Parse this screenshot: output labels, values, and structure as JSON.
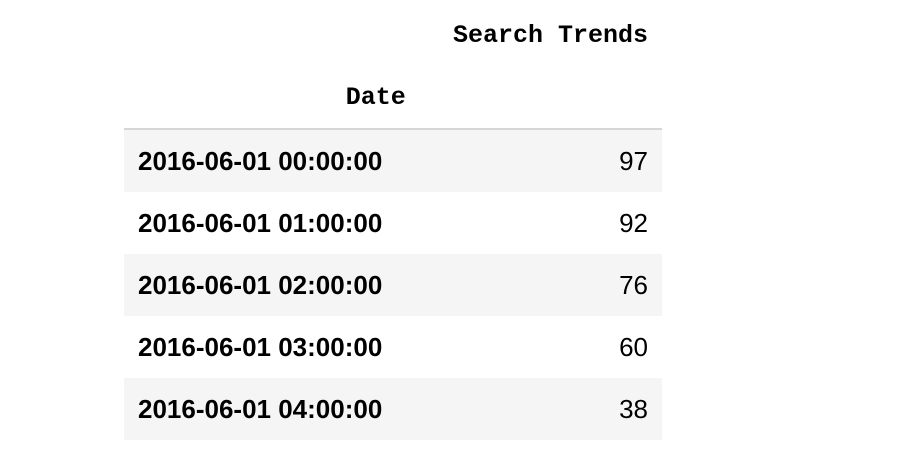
{
  "output_cell": {
    "columns": {
      "index_header": "",
      "value_header": "Search Trends"
    },
    "index_name": "Date",
    "rows": [
      {
        "date": "2016-06-01 00:00:00",
        "value": "97"
      },
      {
        "date": "2016-06-01 01:00:00",
        "value": "92"
      },
      {
        "date": "2016-06-01 02:00:00",
        "value": "76"
      },
      {
        "date": "2016-06-01 03:00:00",
        "value": "60"
      },
      {
        "date": "2016-06-01 04:00:00",
        "value": "38"
      }
    ]
  },
  "colors": {
    "stripe": "#f5f5f5",
    "header_border": "#d6d6d6"
  }
}
